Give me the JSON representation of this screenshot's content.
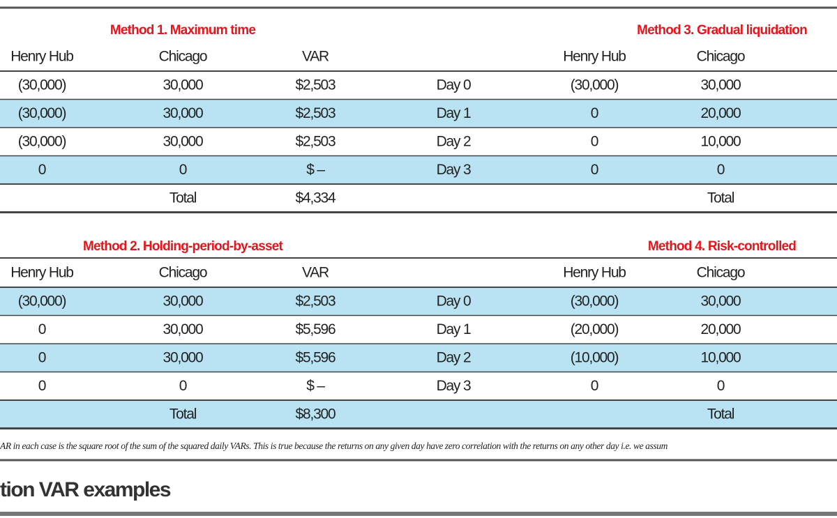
{
  "tables": [
    {
      "left_title": "Method 1. Maximum time",
      "right_title": "Method 3. Gradual liquidation",
      "left_headers": [
        "Henry Hub",
        "Chicago",
        "VAR"
      ],
      "right_headers": [
        "Henry Hub",
        "Chicago"
      ],
      "rows": [
        [
          "(30,000)",
          "30,000",
          "$2,503",
          "Day 0",
          "(30,000)",
          "30,000"
        ],
        [
          "(30,000)",
          "30,000",
          "$2,503",
          "Day 1",
          "0",
          "20,000"
        ],
        [
          "(30,000)",
          "30,000",
          "$2,503",
          "Day 2",
          "0",
          "10,000"
        ],
        [
          "0",
          "0",
          "$ –",
          "Day 3",
          "0",
          "0"
        ]
      ],
      "total": [
        "Total",
        "$4,334",
        "Total"
      ],
      "shaded_rows": [
        1,
        3
      ],
      "shaded_total": false
    },
    {
      "left_title": "Method 2. Holding-period-by-asset",
      "right_title": "Method 4. Risk-controlled",
      "left_headers": [
        "Henry Hub",
        "Chicago",
        "VAR"
      ],
      "right_headers": [
        "Henry Hub",
        "Chicago"
      ],
      "rows": [
        [
          "(30,000)",
          "30,000",
          "$2,503",
          "Day 0",
          "(30,000)",
          "30,000"
        ],
        [
          "0",
          "30,000",
          "$5,596",
          "Day 1",
          "(20,000)",
          "20,000"
        ],
        [
          "0",
          "30,000",
          "$5,596",
          "Day 2",
          "(10,000)",
          "10,000"
        ],
        [
          "0",
          "0",
          "$ –",
          "Day 3",
          "0",
          "0"
        ]
      ],
      "total": [
        "Total",
        "$8,300",
        "Total"
      ],
      "shaded_rows": [
        0,
        2
      ],
      "shaded_total": true
    }
  ],
  "footnote": "AR in each case is the square root of the sum of the squared daily VARs. This is true because the returns on any given day have zero correlation with the returns on any other day i.e. we assum",
  "caption": "tion VAR examples"
}
